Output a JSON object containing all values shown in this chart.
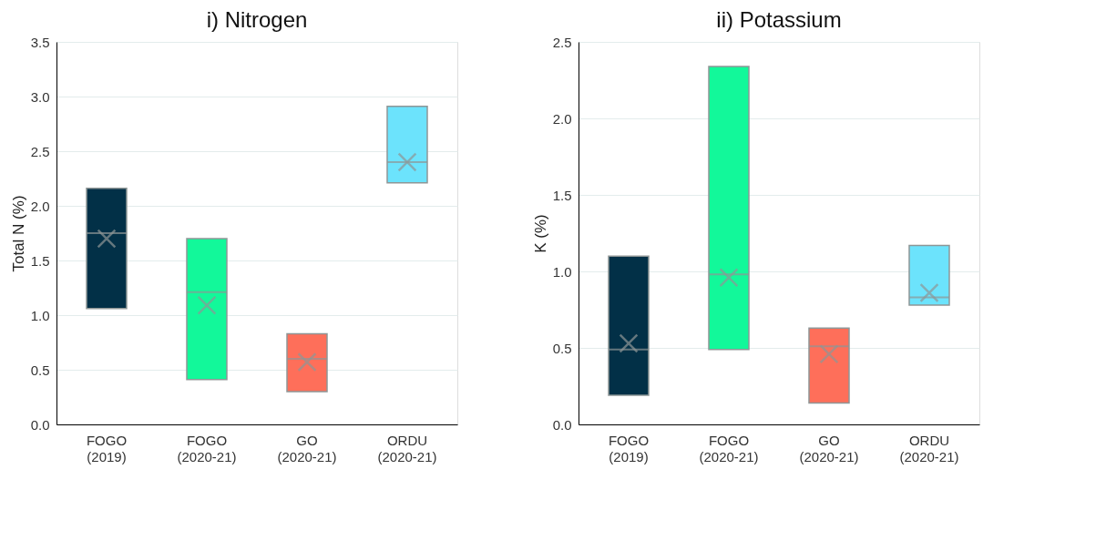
{
  "chart_data": [
    {
      "type": "box",
      "title": "i) Nitrogen",
      "ylabel": "Total N (%)",
      "categories": [
        "FOGO (2019)",
        "FOGO (2020-21)",
        "GO (2020-21)",
        "ORDU (2020-21)"
      ],
      "colors": [
        "#023047",
        "#12f89a",
        "#fe6f5a",
        "#6ce3fc"
      ],
      "boxes": [
        {
          "low": 1.06,
          "q1": 1.06,
          "median": 1.75,
          "q3": 2.16,
          "high": 2.16,
          "mean": 1.7
        },
        {
          "low": 0.41,
          "q1": 0.41,
          "median": 1.21,
          "q3": 1.7,
          "high": 1.7,
          "mean": 1.09
        },
        {
          "low": 0.3,
          "q1": 0.3,
          "median": 0.6,
          "q3": 0.83,
          "high": 0.83,
          "mean": 0.57
        },
        {
          "low": 2.21,
          "q1": 2.21,
          "median": 2.4,
          "q3": 2.91,
          "high": 2.91,
          "mean": 2.4
        }
      ],
      "ylim": [
        0,
        3.5
      ],
      "yticks": [
        {
          "value": 0,
          "label": "0.0"
        },
        {
          "value": 0.5,
          "label": "0.5"
        },
        {
          "value": 1,
          "label": "1.0"
        },
        {
          "value": 1.5,
          "label": "1.5"
        },
        {
          "value": 2,
          "label": "2.0"
        },
        {
          "value": 2.5,
          "label": "2.5"
        },
        {
          "value": 3,
          "label": "3.0"
        },
        {
          "value": 3.5,
          "label": "3.5"
        }
      ],
      "grid": "y"
    },
    {
      "type": "box",
      "title": "ii) Potassium",
      "ylabel": "K (%)",
      "categories": [
        "FOGO (2019)",
        "FOGO (2020-21)",
        "GO (2020-21)",
        "ORDU (2020-21)"
      ],
      "colors": [
        "#023047",
        "#12f89a",
        "#fe6f5a",
        "#6ce3fc"
      ],
      "boxes": [
        {
          "low": 0.19,
          "q1": 0.19,
          "median": 0.49,
          "q3": 1.1,
          "high": 1.1,
          "mean": 0.53
        },
        {
          "low": 0.49,
          "q1": 0.49,
          "median": 0.98,
          "q3": 2.34,
          "high": 2.34,
          "mean": 0.96
        },
        {
          "low": 0.14,
          "q1": 0.14,
          "median": 0.51,
          "q3": 0.63,
          "high": 0.63,
          "mean": 0.46
        },
        {
          "low": 0.78,
          "q1": 0.78,
          "median": 0.83,
          "q3": 1.17,
          "high": 1.17,
          "mean": 0.86
        }
      ],
      "ylim": [
        0,
        2.5
      ],
      "yticks": [
        {
          "value": 0,
          "label": "0.0"
        },
        {
          "value": 0.5,
          "label": "0.5"
        },
        {
          "value": 1,
          "label": "1.0"
        },
        {
          "value": 1.5,
          "label": "1.5"
        },
        {
          "value": 2,
          "label": "2.0"
        },
        {
          "value": 2.5,
          "label": "2.5"
        }
      ],
      "grid": "y"
    }
  ]
}
